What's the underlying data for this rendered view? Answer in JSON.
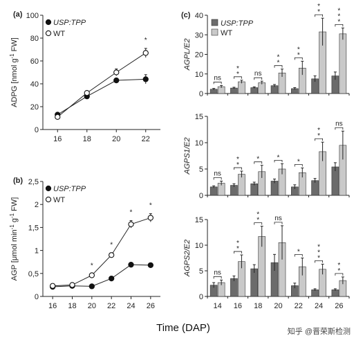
{
  "xlabel": "Time (DAP)",
  "watermark": "知乎 @晋荣斯检测",
  "chart_data": [
    {
      "panel": "(a)",
      "type": "line",
      "ylabel_main": "ADPG [nmol g",
      "ylabel_sup": "-1",
      "ylabel_tail": " FW]",
      "x": [
        16,
        18,
        20,
        22
      ],
      "xlim": [
        15,
        23
      ],
      "ylim": [
        0,
        100
      ],
      "yticks": [
        0,
        20,
        40,
        60,
        80,
        100
      ],
      "legend": [
        "USP:TPP",
        "WT"
      ],
      "series": [
        {
          "name": "USP:TPP",
          "values": [
            13,
            29,
            43,
            44
          ],
          "err": [
            1,
            1,
            1.5,
            4
          ]
        },
        {
          "name": "WT",
          "values": [
            11,
            32,
            50,
            67
          ],
          "err": [
            1,
            1.5,
            3,
            4
          ]
        }
      ],
      "significance": [
        null,
        null,
        null,
        "*"
      ]
    },
    {
      "panel": "(b)",
      "type": "line",
      "ylabel_main": "AGP [μmol min",
      "ylabel_sup": "-1",
      "ylabel_mid": " g",
      "ylabel_sup2": "-1",
      "ylabel_tail": " FW]",
      "x": [
        16,
        18,
        20,
        22,
        24,
        26
      ],
      "xlim": [
        15,
        27
      ],
      "ylim": [
        0,
        2.5
      ],
      "yticks": [
        "0",
        "0,5",
        "1",
        "1,5",
        "2",
        "2,5"
      ],
      "legend": [
        "USP:TPP",
        "WT"
      ],
      "series": [
        {
          "name": "USP:TPP",
          "values": [
            0.21,
            0.23,
            0.22,
            0.39,
            0.69,
            0.68
          ],
          "err": [
            0.02,
            0.02,
            0.02,
            0.03,
            0.03,
            0.03
          ]
        },
        {
          "name": "WT",
          "values": [
            0.23,
            0.25,
            0.46,
            0.9,
            1.57,
            1.71
          ],
          "err": [
            0.03,
            0.03,
            0.03,
            0.04,
            0.08,
            0.09
          ]
        }
      ],
      "significance": [
        null,
        null,
        "*",
        "*",
        "*",
        "*"
      ]
    },
    {
      "panel": "(c)",
      "type": "bar",
      "ylabel": "AGPL/E2",
      "categories": [
        "14",
        "16",
        "18",
        "20",
        "22",
        "24",
        "26"
      ],
      "ylim": [
        0,
        40
      ],
      "yticks": [
        0,
        10,
        20,
        30,
        40
      ],
      "legend": [
        "USP:TPP",
        "WT"
      ],
      "series": [
        {
          "name": "USP:TPP",
          "values": [
            2.2,
            2.8,
            3,
            4,
            2.5,
            7.5,
            9
          ],
          "err": [
            0.4,
            0.4,
            0.4,
            0.6,
            0.5,
            1.5,
            2
          ]
        },
        {
          "name": "WT",
          "values": [
            3.5,
            6,
            5.5,
            10.5,
            13,
            31.5,
            30.5
          ],
          "err": [
            0.6,
            0.8,
            0.8,
            2,
            3.5,
            7,
            3
          ]
        }
      ],
      "significance": [
        "ns",
        "**",
        "ns",
        "**",
        "**",
        "**",
        "***"
      ]
    },
    {
      "type": "bar",
      "ylabel": "AGPS1/E2",
      "categories": [
        "14",
        "16",
        "18",
        "20",
        "22",
        "24",
        "26"
      ],
      "ylim": [
        0,
        15
      ],
      "yticks": [
        0,
        5,
        10,
        15
      ],
      "series": [
        {
          "name": "USP:TPP",
          "values": [
            1.6,
            1.9,
            2.2,
            2.7,
            1.6,
            2.8,
            5.4
          ],
          "err": [
            0.2,
            0.3,
            0.3,
            0.4,
            0.4,
            0.4,
            0.8
          ]
        },
        {
          "name": "WT",
          "values": [
            2.3,
            4,
            4.5,
            5,
            4.3,
            8.3,
            9.5
          ],
          "err": [
            0.4,
            0.6,
            1.2,
            1,
            0.9,
            1.8,
            2.7
          ]
        }
      ],
      "significance": [
        "ns",
        "**",
        "*",
        "*",
        "*",
        "**",
        "ns"
      ]
    },
    {
      "type": "bar",
      "ylabel": "AGPS2/E2",
      "categories": [
        "14",
        "16",
        "18",
        "20",
        "22",
        "24",
        "26"
      ],
      "ylim": [
        0,
        15
      ],
      "yticks": [
        0,
        5,
        10,
        15
      ],
      "series": [
        {
          "name": "USP:TPP",
          "values": [
            2.2,
            3.5,
            5.4,
            6.6,
            2.1,
            1.3,
            1.3
          ],
          "err": [
            0.5,
            0.5,
            0.8,
            1.6,
            0.5,
            0.2,
            0.2
          ]
        },
        {
          "name": "WT",
          "values": [
            2.7,
            6.8,
            11.7,
            10.5,
            5.8,
            5.3,
            3.1
          ],
          "err": [
            0.5,
            1.3,
            2,
            3.3,
            1.7,
            1,
            0.7
          ]
        }
      ],
      "significance": [
        "ns",
        "**",
        "**",
        "ns",
        "*",
        "***",
        "**"
      ]
    }
  ]
}
